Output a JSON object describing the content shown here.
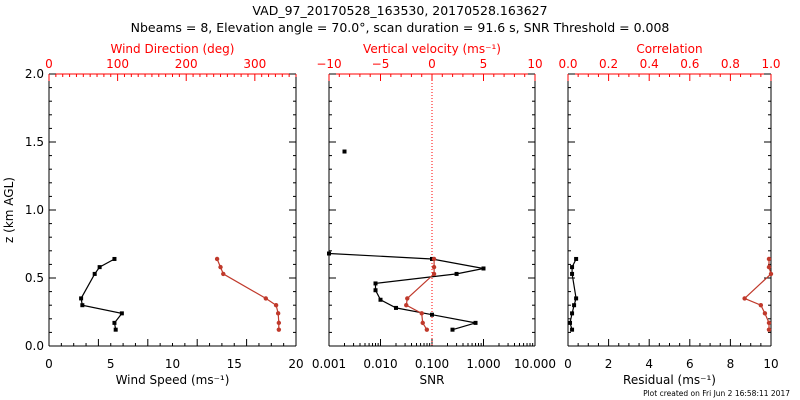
{
  "title_line1": "VAD_97_20170528_163530, 20170528.163627",
  "title_line2": "Nbeams = 8, Elevation angle = 70.0°, scan duration = 91.6 s, SNR Threshold = 0.008",
  "footer": "Plot created on Fri Jun  2 16:58:11 2017",
  "colors": {
    "primary": "#000000",
    "secondary": "#ff0000",
    "series_red": "#c0392b"
  },
  "chart_data": [
    {
      "type": "line",
      "ylabel": "z (km AGL)",
      "ylim": [
        0,
        2.0
      ],
      "yticks": [
        "0.0",
        "0.5",
        "1.0",
        "1.5",
        "2.0"
      ],
      "bottom_axis": {
        "label": "Wind Speed (ms⁻¹)",
        "lim": [
          0,
          20
        ],
        "ticks": [
          "0",
          "5",
          "10",
          "15",
          "20"
        ]
      },
      "top_axis": {
        "label": "Wind Direction (deg)",
        "lim": [
          0,
          360
        ],
        "ticks": [
          "0",
          "100",
          "200",
          "300"
        ]
      },
      "series": [
        {
          "axis": "bottom",
          "color": "black",
          "z": [
            0.64,
            0.58,
            0.53,
            0.35,
            0.3,
            0.24,
            0.17,
            0.12
          ],
          "x": [
            5.3,
            4.1,
            3.7,
            2.6,
            2.7,
            5.9,
            5.3,
            5.4
          ]
        },
        {
          "axis": "top",
          "color": "red",
          "z": [
            0.64,
            0.58,
            0.53,
            0.35,
            0.3,
            0.24,
            0.17,
            0.12
          ],
          "x": [
            245,
            250,
            254,
            316,
            331,
            334,
            335,
            335
          ]
        }
      ]
    },
    {
      "type": "line",
      "ylim": [
        0,
        2.0
      ],
      "xscale": "log",
      "bottom_axis": {
        "label": "SNR",
        "lim": [
          0.001,
          10
        ],
        "ticks": [
          "0.001",
          "0.010",
          "0.100",
          "1.000",
          "10.000"
        ]
      },
      "top_axis": {
        "label": "Vertical velocity (ms⁻¹)",
        "lim": [
          -10,
          10
        ],
        "ticks": [
          "−10",
          "−5",
          "0",
          "5",
          "10"
        ]
      },
      "reference_line": {
        "axis": "top",
        "value": 0,
        "style": "dotted",
        "color": "red"
      },
      "series": [
        {
          "axis": "bottom",
          "color": "black",
          "z": [
            0.68,
            0.64,
            0.57,
            0.53,
            0.46,
            0.41,
            0.34,
            0.28,
            0.23,
            0.17,
            0.12
          ],
          "x": [
            0.001,
            0.1,
            1.0,
            0.3,
            0.008,
            0.008,
            0.01,
            0.02,
            0.1,
            0.7,
            0.25
          ]
        },
        {
          "axis": "bottom",
          "color": "black",
          "marker_only": true,
          "z": [
            1.43
          ],
          "x": [
            0.002
          ]
        },
        {
          "axis": "top",
          "color": "red",
          "z": [
            0.64,
            0.58,
            0.53,
            0.35,
            0.3,
            0.24,
            0.17,
            0.12
          ],
          "x": [
            0.2,
            0.2,
            0.2,
            -2.4,
            -2.5,
            -1.0,
            -0.9,
            -0.5
          ]
        }
      ]
    },
    {
      "type": "line",
      "ylim": [
        0,
        2.0
      ],
      "bottom_axis": {
        "label": "Residual (ms⁻¹)",
        "lim": [
          0,
          10
        ],
        "ticks": [
          "0",
          "2",
          "4",
          "6",
          "8",
          "10"
        ]
      },
      "top_axis": {
        "label": "Correlation",
        "lim": [
          0,
          1.0
        ],
        "ticks": [
          "0.0",
          "0.2",
          "0.4",
          "0.6",
          "0.8",
          "1.0"
        ]
      },
      "series": [
        {
          "axis": "bottom",
          "color": "black",
          "z": [
            0.64,
            0.58,
            0.53,
            0.35,
            0.3,
            0.24,
            0.17,
            0.12
          ],
          "x": [
            0.4,
            0.2,
            0.2,
            0.4,
            0.3,
            0.2,
            0.1,
            0.2
          ]
        },
        {
          "axis": "top",
          "color": "red",
          "z": [
            0.64,
            0.58,
            0.53,
            0.35,
            0.3,
            0.24,
            0.17,
            0.12
          ],
          "x": [
            0.99,
            0.99,
            1.0,
            0.87,
            0.95,
            0.97,
            0.99,
            0.99
          ]
        }
      ]
    }
  ]
}
